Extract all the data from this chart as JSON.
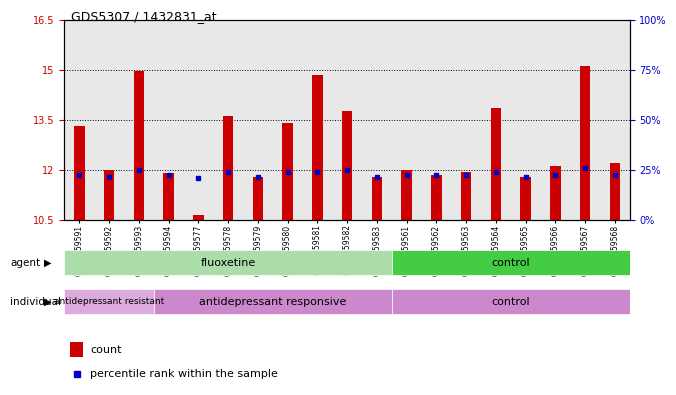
{
  "title": "GDS5307 / 1432831_at",
  "samples": [
    "GSM1059591",
    "GSM1059592",
    "GSM1059593",
    "GSM1059594",
    "GSM1059577",
    "GSM1059578",
    "GSM1059579",
    "GSM1059580",
    "GSM1059581",
    "GSM1059582",
    "GSM1059583",
    "GSM1059561",
    "GSM1059562",
    "GSM1059563",
    "GSM1059564",
    "GSM1059565",
    "GSM1059566",
    "GSM1059567",
    "GSM1059568"
  ],
  "red_values": [
    13.3,
    12.0,
    14.95,
    11.9,
    10.65,
    13.6,
    11.8,
    13.4,
    14.85,
    13.75,
    11.8,
    12.0,
    11.85,
    11.95,
    13.85,
    11.8,
    12.1,
    15.1,
    12.2
  ],
  "blue_values": [
    11.85,
    11.8,
    12.0,
    11.85,
    11.75,
    11.95,
    11.8,
    11.95,
    11.95,
    12.0,
    11.8,
    11.85,
    11.85,
    11.85,
    11.95,
    11.8,
    11.85,
    12.05,
    11.85
  ],
  "ylim_left": [
    10.5,
    16.5
  ],
  "yticks_left": [
    10.5,
    12.0,
    13.5,
    15.0,
    16.5
  ],
  "ytick_labels_left": [
    "10.5",
    "12",
    "13.5",
    "15",
    "16.5"
  ],
  "yticks_right_vals": [
    0,
    25,
    50,
    75,
    100
  ],
  "ytick_labels_right": [
    "0%",
    "25%",
    "50%",
    "75%",
    "100%"
  ],
  "agent_groups": [
    {
      "label": "fluoxetine",
      "start": 0,
      "end": 11,
      "color": "#aaddaa"
    },
    {
      "label": "control",
      "start": 11,
      "end": 19,
      "color": "#44cc44"
    }
  ],
  "individual_groups": [
    {
      "label": "antidepressant resistant",
      "start": 0,
      "end": 3,
      "color": "#ddaadd"
    },
    {
      "label": "antidepressant responsive",
      "start": 3,
      "end": 11,
      "color": "#cc88cc"
    },
    {
      "label": "control",
      "start": 11,
      "end": 19,
      "color": "#cc88cc"
    }
  ],
  "bar_color": "#cc0000",
  "blue_color": "#0000cc",
  "baseline": 10.5,
  "left_tick_color": "#cc0000",
  "right_tick_color": "#0000cc",
  "chart_bg": "#ffffff",
  "cell_bg": "#e8e8e8"
}
